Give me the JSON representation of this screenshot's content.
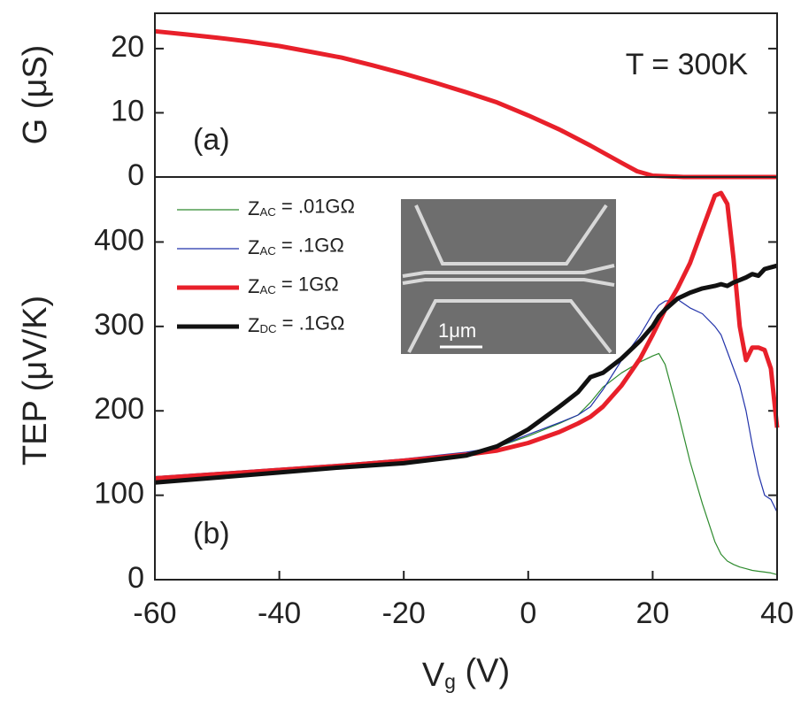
{
  "chart_data": [
    {
      "type": "line",
      "ylabel": "G (μS)",
      "annotations": [
        "T = 300K",
        "(a)"
      ],
      "x": [
        -60,
        -55,
        -50,
        -45,
        -40,
        -35,
        -30,
        -25,
        -20,
        -15,
        -10,
        -5,
        0,
        5,
        10,
        15,
        17.5,
        20,
        25,
        30,
        35,
        40
      ],
      "series": [
        {
          "color": "#e8202a",
          "values": [
            22.7,
            22.2,
            21.7,
            21.1,
            20.4,
            19.5,
            18.6,
            17.4,
            16.1,
            14.7,
            13.2,
            11.6,
            9.6,
            7.4,
            4.9,
            2.2,
            0.9,
            0.2,
            0,
            0,
            0,
            0
          ]
        }
      ],
      "xlim": [
        -60,
        40
      ],
      "ylim": [
        0,
        25.5
      ],
      "yticks": [
        0,
        10,
        20
      ],
      "grid": false
    },
    {
      "type": "line",
      "xlabel": "Vg (V)",
      "ylabel": "TEP (μV/K)",
      "annotations": [
        "(b)",
        "1μm"
      ],
      "x": [
        -60,
        -50,
        -40,
        -30,
        -20,
        -10,
        -5,
        0,
        5,
        8,
        10,
        12,
        15,
        18,
        20,
        21,
        22,
        24,
        26,
        28,
        30,
        31,
        32,
        33,
        34,
        35,
        36,
        37,
        38,
        39,
        40
      ],
      "series": [
        {
          "name": "ZAC = .01GΩ",
          "color": "#2e8b2e",
          "values": [
            122,
            126,
            131,
            136,
            142,
            150,
            157,
            170,
            185,
            195,
            210,
            228,
            245,
            258,
            265,
            268,
            255,
            200,
            140,
            90,
            45,
            30,
            22,
            18,
            15,
            13,
            11,
            10,
            9,
            8,
            6
          ]
        },
        {
          "name": "ZAC = .1GΩ",
          "color": "#2233aa",
          "values": [
            122,
            127,
            132,
            137,
            143,
            151,
            157,
            172,
            186,
            195,
            205,
            225,
            260,
            290,
            315,
            325,
            330,
            332,
            322,
            315,
            300,
            290,
            270,
            250,
            230,
            200,
            160,
            125,
            100,
            95,
            80
          ]
        },
        {
          "name": "ZAC = 1GΩ",
          "color": "#e8202a",
          "values": [
            120,
            125,
            130,
            135,
            141,
            148,
            153,
            162,
            175,
            185,
            193,
            205,
            230,
            262,
            290,
            305,
            320,
            345,
            375,
            415,
            455,
            458,
            445,
            380,
            300,
            260,
            275,
            275,
            272,
            250,
            180
          ]
        },
        {
          "name": "ZDC = .1GΩ",
          "color": "#111111",
          "values": [
            115,
            121,
            127,
            133,
            138,
            147,
            158,
            178,
            205,
            222,
            240,
            245,
            262,
            283,
            300,
            312,
            320,
            333,
            340,
            345,
            348,
            350,
            348,
            352,
            355,
            358,
            362,
            360,
            368,
            370,
            372
          ]
        }
      ],
      "xlim": [
        -60,
        40
      ],
      "xticks": [
        -60,
        -40,
        -20,
        0,
        20,
        40
      ],
      "ylim": [
        0,
        477
      ],
      "yticks": [
        0,
        100,
        200,
        300,
        400
      ],
      "legend": "upper left",
      "grid": false
    }
  ]
}
